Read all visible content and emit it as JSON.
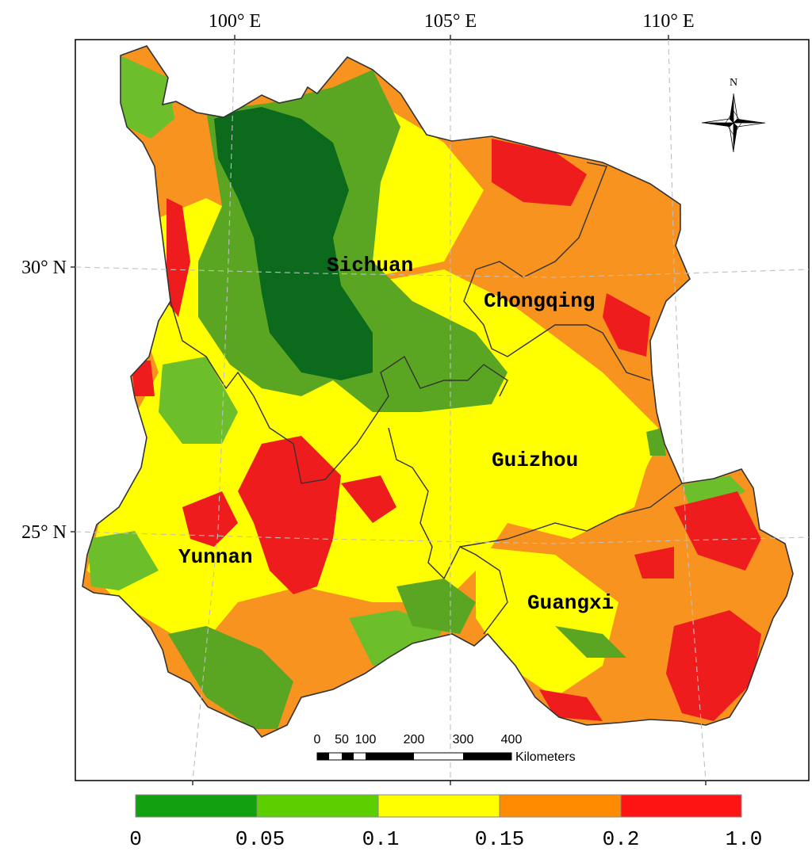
{
  "map": {
    "longitude_labels": [
      "100° E",
      "105° E",
      "110° E"
    ],
    "latitude_labels": [
      "30° N",
      "25° N"
    ],
    "north_label": "N",
    "provinces": [
      {
        "id": "sichuan",
        "label": "Sichuan"
      },
      {
        "id": "chongqing",
        "label": "Chongqing"
      },
      {
        "id": "guizhou",
        "label": "Guizhou"
      },
      {
        "id": "yunnan",
        "label": "Yunnan"
      },
      {
        "id": "guangxi",
        "label": "Guangxi"
      }
    ],
    "scale_bar": {
      "ticks": [
        "0",
        "50",
        "100",
        "200",
        "300",
        "400"
      ],
      "unit": "Kilometers"
    }
  },
  "legend": {
    "classes": [
      {
        "color": "#10a010"
      },
      {
        "color": "#5ccf00"
      },
      {
        "color": "#ffff00"
      },
      {
        "color": "#ff8c00"
      },
      {
        "color": "#ff1414"
      }
    ],
    "break_labels": [
      "0",
      "0.05",
      "0.1",
      "0.15",
      "0.2",
      "1.0"
    ]
  },
  "colors": {
    "dark_green": "#0b6a1b",
    "mid_green": "#5aa623",
    "light_green": "#6cbf2a",
    "yellow": "#ffff00",
    "orange": "#f7931e",
    "red": "#ee1c1c",
    "boundary": "#333333",
    "graticule": "#bfbfbf"
  }
}
